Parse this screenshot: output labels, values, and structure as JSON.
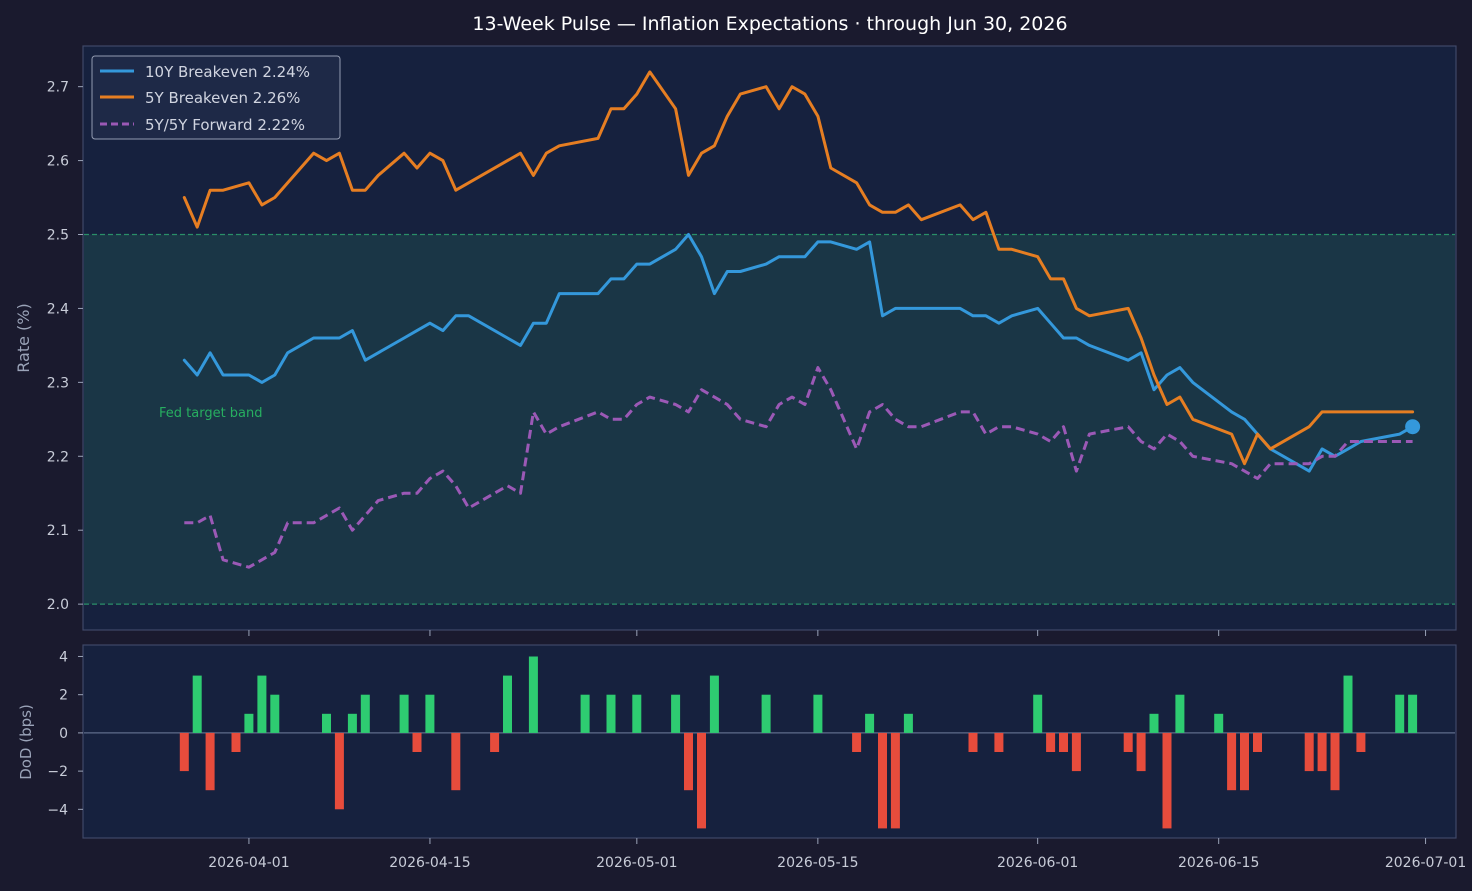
{
  "chart_data": [
    {
      "type": "line",
      "title": "13-Week Pulse — Inflation Expectations  ·  through Jun 30, 2026",
      "ylabel": "Rate (%)",
      "ylim": [
        1.965,
        2.755
      ],
      "yticks": [
        "2.0",
        "2.1",
        "2.2",
        "2.3",
        "2.4",
        "2.5",
        "2.6",
        "2.7"
      ],
      "grid": false,
      "legend_position": "top-left",
      "colors": {
        "background": "#1a1a2e",
        "panel": "#16213e",
        "band": "#1b3a48",
        "band_line": "#2a8f68"
      },
      "band": {
        "label": "Fed target band",
        "low": 2.0,
        "high": 2.5
      },
      "x": [
        "2026-03-27",
        "2026-03-28",
        "2026-03-29",
        "2026-03-30",
        "2026-04-01",
        "2026-04-02",
        "2026-04-03",
        "2026-04-04",
        "2026-04-06",
        "2026-04-07",
        "2026-04-08",
        "2026-04-09",
        "2026-04-10",
        "2026-04-11",
        "2026-04-13",
        "2026-04-14",
        "2026-04-15",
        "2026-04-16",
        "2026-04-17",
        "2026-04-18",
        "2026-04-21",
        "2026-04-22",
        "2026-04-23",
        "2026-04-24",
        "2026-04-25",
        "2026-04-28",
        "2026-04-29",
        "2026-04-30",
        "2026-05-01",
        "2026-05-02",
        "2026-05-04",
        "2026-05-05",
        "2026-05-06",
        "2026-05-07",
        "2026-05-08",
        "2026-05-09",
        "2026-05-11",
        "2026-05-12",
        "2026-05-13",
        "2026-05-14",
        "2026-05-15",
        "2026-05-16",
        "2026-05-18",
        "2026-05-19",
        "2026-05-20",
        "2026-05-21",
        "2026-05-22",
        "2026-05-23",
        "2026-05-26",
        "2026-05-27",
        "2026-05-28",
        "2026-05-29",
        "2026-05-30",
        "2026-06-01",
        "2026-06-02",
        "2026-06-03",
        "2026-06-04",
        "2026-06-05",
        "2026-06-08",
        "2026-06-09",
        "2026-06-10",
        "2026-06-11",
        "2026-06-12",
        "2026-06-13",
        "2026-06-16",
        "2026-06-17",
        "2026-06-18",
        "2026-06-19",
        "2026-06-22",
        "2026-06-23",
        "2026-06-24",
        "2026-06-25",
        "2026-06-26",
        "2026-06-29",
        "2026-06-30"
      ],
      "series": [
        {
          "name": "10Y Breakeven  2.24%",
          "color": "#3498db",
          "style": "solid",
          "values": [
            2.33,
            2.31,
            2.34,
            2.31,
            2.31,
            2.3,
            2.31,
            2.34,
            2.36,
            2.36,
            2.36,
            2.37,
            2.33,
            2.34,
            2.36,
            2.37,
            2.38,
            2.37,
            2.39,
            2.39,
            2.36,
            2.35,
            2.38,
            2.38,
            2.42,
            2.42,
            2.44,
            2.44,
            2.46,
            2.46,
            2.48,
            2.5,
            2.47,
            2.42,
            2.45,
            2.45,
            2.46,
            2.47,
            2.47,
            2.47,
            2.49,
            2.49,
            2.48,
            2.49,
            2.39,
            2.4,
            2.4,
            2.4,
            2.4,
            2.39,
            2.39,
            2.38,
            2.39,
            2.4,
            2.38,
            2.36,
            2.36,
            2.35,
            2.33,
            2.34,
            2.29,
            2.31,
            2.32,
            2.3,
            2.26,
            2.25,
            2.23,
            2.21,
            2.18,
            2.21,
            2.2,
            2.21,
            2.22,
            2.23,
            2.24
          ]
        },
        {
          "name": "5Y Breakeven   2.26%",
          "color": "#e67e22",
          "style": "solid",
          "values": [
            2.55,
            2.51,
            2.56,
            2.56,
            2.57,
            2.54,
            2.55,
            2.57,
            2.61,
            2.6,
            2.61,
            2.56,
            2.56,
            2.58,
            2.61,
            2.59,
            2.61,
            2.6,
            2.56,
            2.57,
            2.6,
            2.61,
            2.58,
            2.61,
            2.62,
            2.63,
            2.67,
            2.67,
            2.69,
            2.72,
            2.67,
            2.58,
            2.61,
            2.62,
            2.66,
            2.69,
            2.7,
            2.67,
            2.7,
            2.69,
            2.66,
            2.59,
            2.57,
            2.54,
            2.53,
            2.53,
            2.54,
            2.52,
            2.54,
            2.52,
            2.53,
            2.48,
            2.48,
            2.47,
            2.44,
            2.44,
            2.4,
            2.39,
            2.4,
            2.36,
            2.31,
            2.27,
            2.28,
            2.25,
            2.23,
            2.19,
            2.23,
            2.21,
            2.24,
            2.26,
            2.26,
            2.26,
            2.26,
            2.26,
            2.26
          ]
        },
        {
          "name": "5Y/5Y Forward  2.22%",
          "color": "#9b59b6",
          "style": "dashed",
          "values": [
            2.11,
            2.11,
            2.12,
            2.06,
            2.05,
            2.06,
            2.07,
            2.11,
            2.11,
            2.12,
            2.13,
            2.1,
            2.12,
            2.14,
            2.15,
            2.15,
            2.17,
            2.18,
            2.16,
            2.13,
            2.16,
            2.15,
            2.26,
            2.23,
            2.24,
            2.26,
            2.25,
            2.25,
            2.27,
            2.28,
            2.27,
            2.26,
            2.29,
            2.28,
            2.27,
            2.25,
            2.24,
            2.27,
            2.28,
            2.27,
            2.32,
            2.29,
            2.21,
            2.26,
            2.27,
            2.25,
            2.24,
            2.24,
            2.26,
            2.26,
            2.23,
            2.24,
            2.24,
            2.23,
            2.22,
            2.24,
            2.18,
            2.23,
            2.24,
            2.22,
            2.21,
            2.23,
            2.22,
            2.2,
            2.19,
            2.18,
            2.17,
            2.19,
            2.19,
            2.2,
            2.2,
            2.22,
            2.22,
            2.22,
            2.22
          ]
        }
      ]
    },
    {
      "type": "bar",
      "ylabel": "DoD (bps)",
      "ylim": [
        -5.5,
        4.6
      ],
      "yticks": [
        "−4",
        "−2",
        "0",
        "2",
        "4"
      ],
      "xticks": [
        "2026-04-01",
        "2026-04-15",
        "2026-05-01",
        "2026-05-15",
        "2026-06-01",
        "2026-06-15",
        "2026-07-01"
      ],
      "colors": {
        "positive": "#2ecc71",
        "negative": "#e74c3c",
        "zero_line": "#5f6c8a"
      },
      "x": [
        "2026-03-27",
        "2026-03-28",
        "2026-03-29",
        "2026-03-31",
        "2026-04-01",
        "2026-04-02",
        "2026-04-03",
        "2026-04-07",
        "2026-04-08",
        "2026-04-09",
        "2026-04-10",
        "2026-04-13",
        "2026-04-14",
        "2026-04-15",
        "2026-04-17",
        "2026-04-20",
        "2026-04-21",
        "2026-04-23",
        "2026-04-27",
        "2026-04-29",
        "2026-05-01",
        "2026-05-04",
        "2026-05-05",
        "2026-05-06",
        "2026-05-07",
        "2026-05-11",
        "2026-05-15",
        "2026-05-18",
        "2026-05-19",
        "2026-05-20",
        "2026-05-21",
        "2026-05-22",
        "2026-05-27",
        "2026-05-29",
        "2026-06-01",
        "2026-06-02",
        "2026-06-03",
        "2026-06-04",
        "2026-06-08",
        "2026-06-09",
        "2026-06-10",
        "2026-06-11",
        "2026-06-12",
        "2026-06-15",
        "2026-06-16",
        "2026-06-17",
        "2026-06-18",
        "2026-06-22",
        "2026-06-23",
        "2026-06-24",
        "2026-06-25",
        "2026-06-26",
        "2026-06-29",
        "2026-06-30"
      ],
      "values": [
        -2,
        3,
        -3,
        -1,
        1,
        3,
        2,
        1,
        -4,
        1,
        2,
        2,
        -1,
        2,
        -3,
        -1,
        3,
        4,
        2,
        2,
        2,
        2,
        -3,
        -5,
        3,
        2,
        2,
        -1,
        1,
        -5,
        -5,
        1,
        -1,
        -1,
        2,
        -1,
        -1,
        -2,
        -1,
        -2,
        1,
        -5,
        2,
        1,
        -3,
        -3,
        -1,
        -2,
        -2,
        -3,
        3,
        -1,
        2,
        2
      ]
    }
  ]
}
